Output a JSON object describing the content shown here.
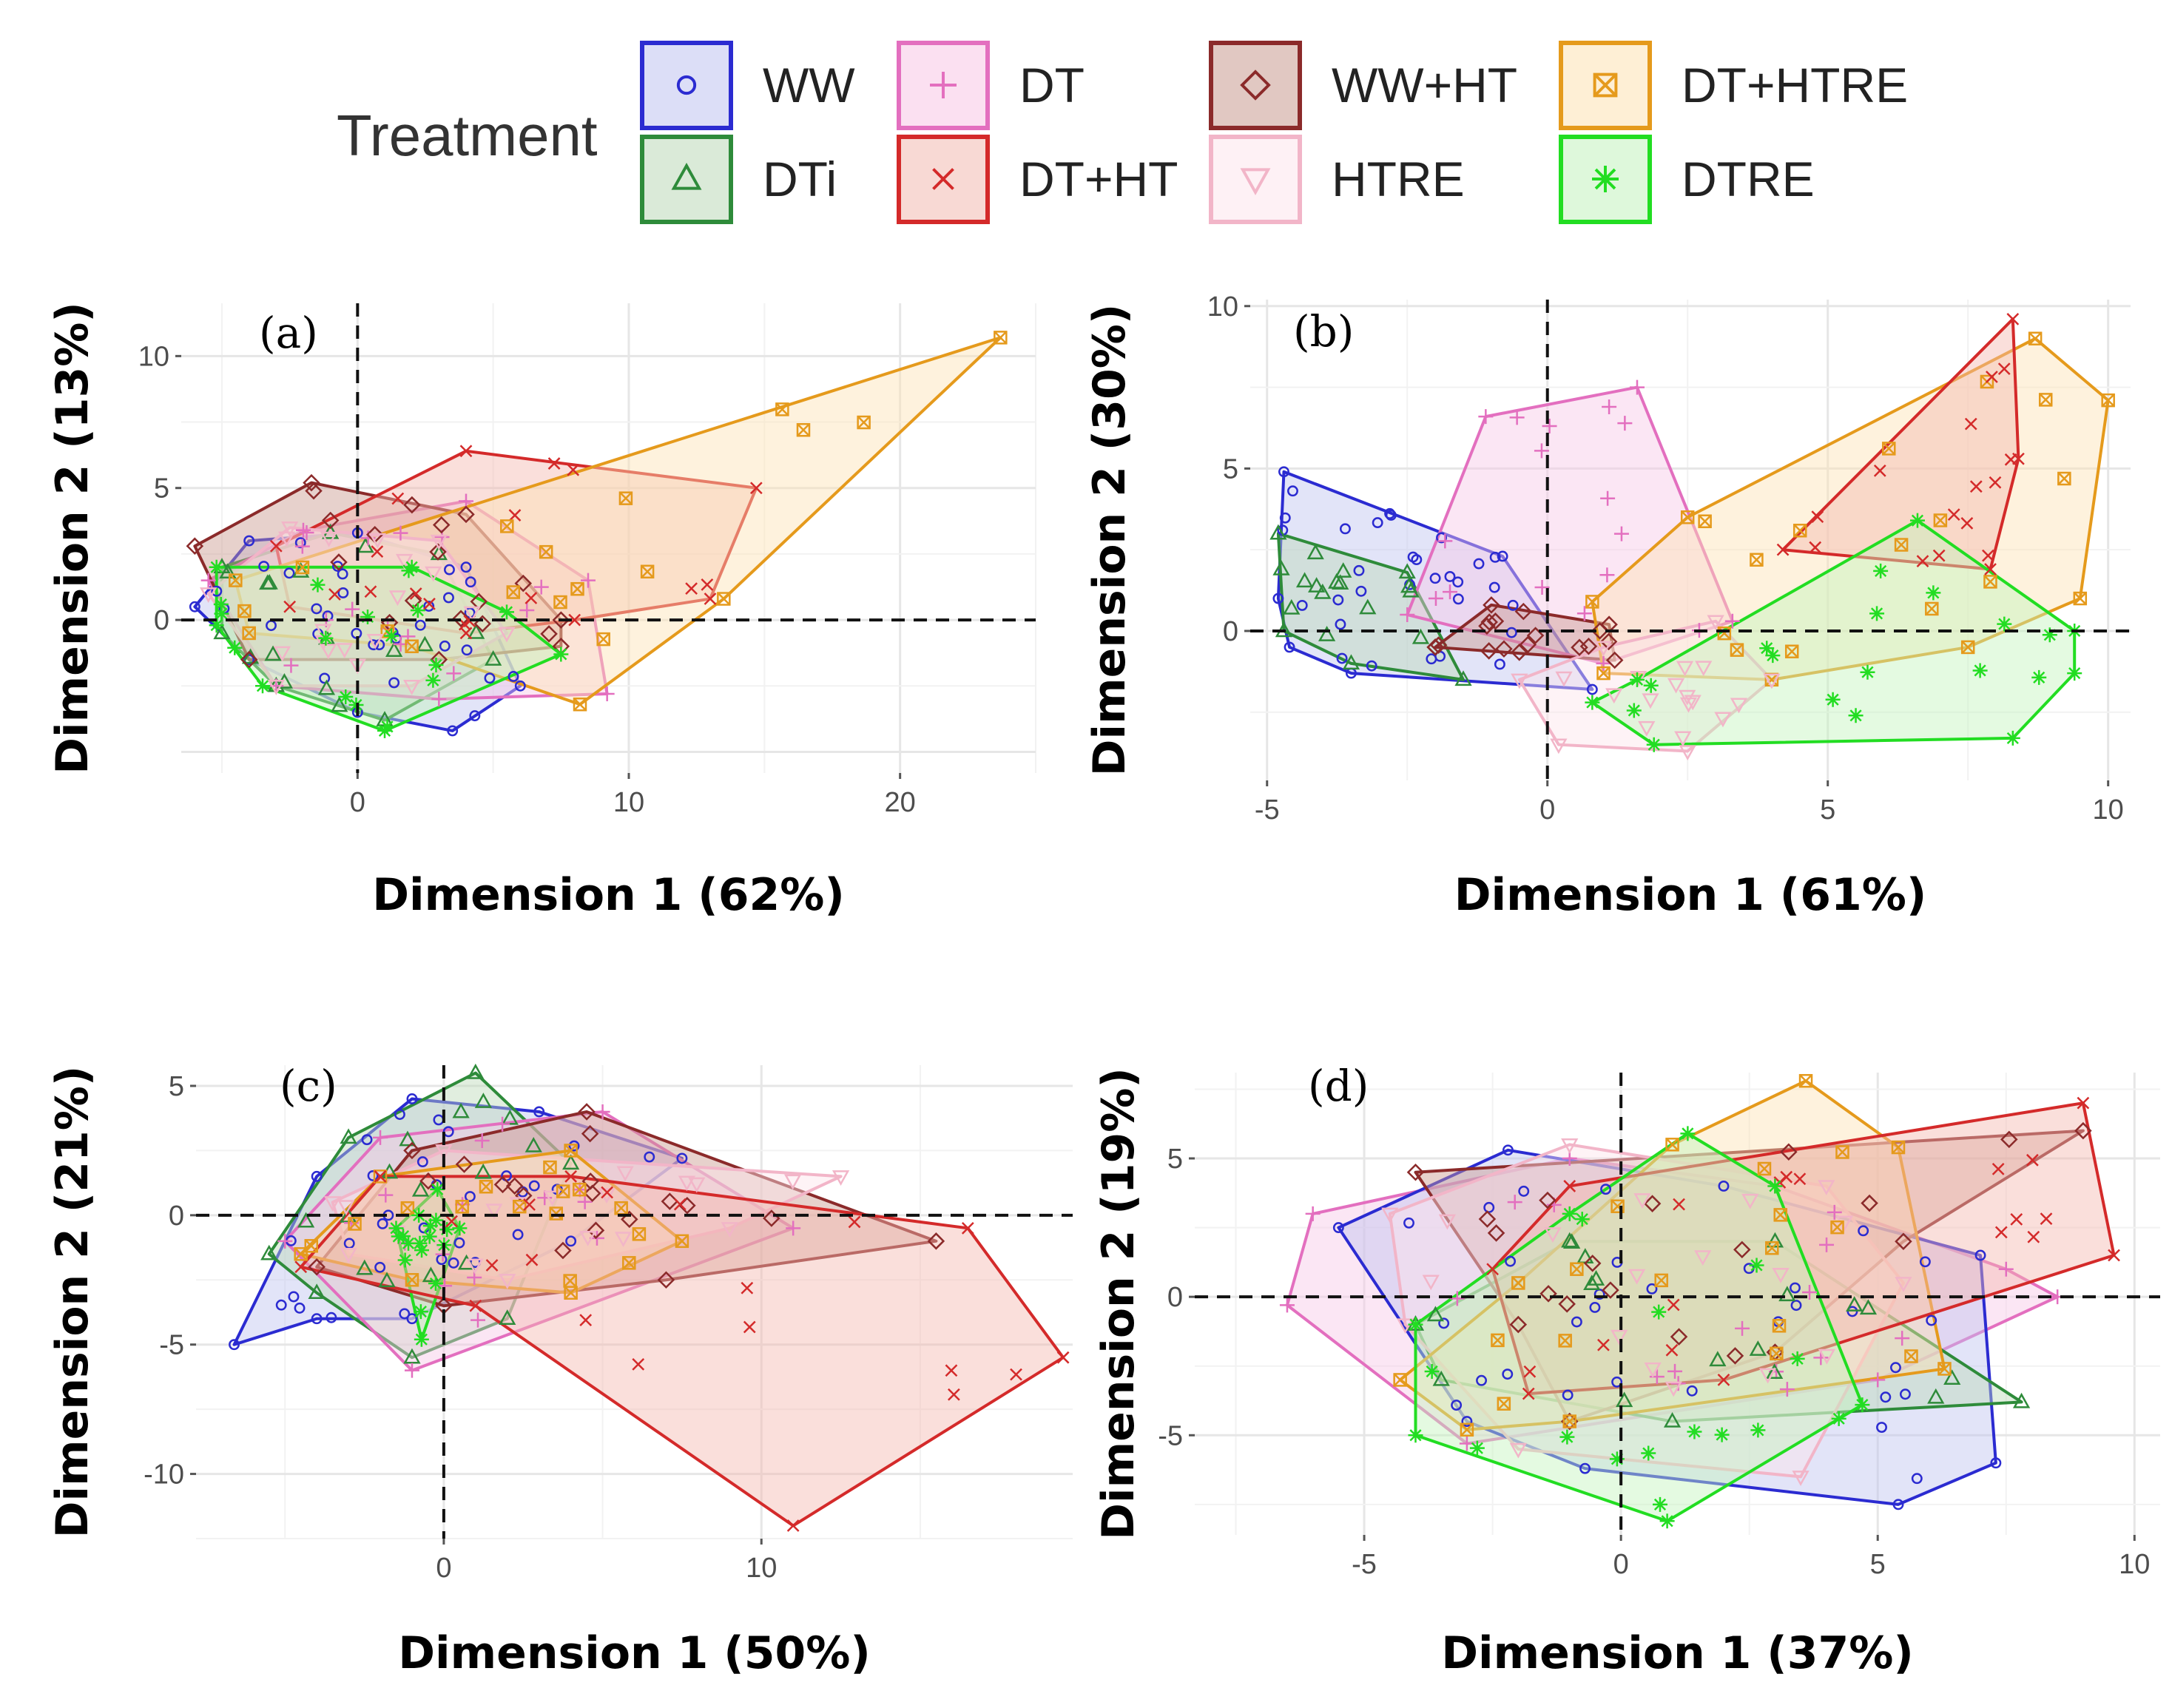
{
  "legend": {
    "title": "Treatment",
    "items": [
      {
        "key": "WW",
        "label": "WW",
        "color": "#2b2bd1",
        "fill": "#bfc3f0",
        "marker": "circle"
      },
      {
        "key": "DT",
        "label": "DT",
        "color": "#e36fbf",
        "fill": "#f7c7e6",
        "marker": "plus"
      },
      {
        "key": "WWHT",
        "label": "WW+HT",
        "color": "#8b2a2a",
        "fill": "#c99a8f",
        "marker": "diamond"
      },
      {
        "key": "DTHTRE",
        "label": "DT+HTRE",
        "color": "#e59a1c",
        "fill": "#fde2b3",
        "marker": "boxed-x"
      },
      {
        "key": "DTi",
        "label": "DTi",
        "color": "#2e8b3a",
        "fill": "#bcd9b8",
        "marker": "triangle"
      },
      {
        "key": "DTHT",
        "label": "DT+HT",
        "color": "#d42a2a",
        "fill": "#f3b9b0",
        "marker": "cross"
      },
      {
        "key": "HTRE",
        "label": "HTRE",
        "color": "#f2b5c8",
        "fill": "#fde5ec",
        "marker": "triangle-down"
      },
      {
        "key": "DTRE",
        "label": "DTRE",
        "color": "#22dd22",
        "fill": "#c3f3bd",
        "marker": "asterisk"
      }
    ]
  },
  "chart_data": [
    {
      "type": "scatter",
      "panel_label": "(a)",
      "xlabel": "Dimension 1 (62%)",
      "ylabel": "Dimension 2 (13%)",
      "xlim": [
        -6.5,
        25
      ],
      "ylim": [
        -5.8,
        12
      ],
      "x_ticks": [
        0,
        10,
        20
      ],
      "x_tick_labels": [
        "0",
        "10",
        "20"
      ],
      "y_ticks": [
        0,
        5,
        10
      ],
      "y_tick_labels": [
        "0",
        "5",
        "10"
      ],
      "hulls": [
        {
          "key": "WW",
          "points": [
            [
              -6,
              0.5
            ],
            [
              -4,
              3
            ],
            [
              0,
              3.3
            ],
            [
              4,
              2
            ],
            [
              6,
              -2.5
            ],
            [
              3.5,
              -4.2
            ],
            [
              0,
              -3.5
            ],
            [
              -4,
              -1.5
            ]
          ]
        },
        {
          "key": "DTi",
          "points": [
            [
              -5,
              2
            ],
            [
              -1,
              3.3
            ],
            [
              3,
              2.5
            ],
            [
              5,
              -1.5
            ],
            [
              1,
              -3.8
            ],
            [
              -3,
              -2.5
            ],
            [
              -5,
              -0.5
            ]
          ]
        },
        {
          "key": "DT",
          "points": [
            [
              -5.5,
              1.5
            ],
            [
              -2,
              3.4
            ],
            [
              4,
              4.5
            ],
            [
              8.5,
              1.5
            ],
            [
              9.2,
              -2.8
            ],
            [
              3,
              -3
            ],
            [
              -3,
              -2.5
            ]
          ]
        },
        {
          "key": "WWHT",
          "points": [
            [
              -6,
              2.8
            ],
            [
              -1.7,
              5.2
            ],
            [
              4,
              4
            ],
            [
              7.5,
              0
            ],
            [
              7.5,
              -1
            ],
            [
              3,
              -1.5
            ],
            [
              -4,
              -1.5
            ]
          ]
        },
        {
          "key": "DTHT",
          "points": [
            [
              -3,
              2.8
            ],
            [
              4,
              6.4
            ],
            [
              14.7,
              5
            ],
            [
              13,
              0.8
            ],
            [
              8,
              0
            ],
            [
              4,
              -0.5
            ],
            [
              -2.5,
              0.5
            ]
          ]
        },
        {
          "key": "DTHTRE",
          "points": [
            [
              -4.5,
              1.5
            ],
            [
              23.7,
              10.7
            ],
            [
              13.5,
              0.8
            ],
            [
              8.2,
              -3.2
            ],
            [
              2,
              -1
            ],
            [
              -4,
              -0.5
            ]
          ]
        },
        {
          "key": "HTRE",
          "points": [
            [
              -5.5,
              1
            ],
            [
              -2.5,
              3.5
            ],
            [
              3,
              3
            ],
            [
              5.5,
              -0.5
            ],
            [
              2,
              -2.5
            ],
            [
              -3,
              -2.5
            ]
          ]
        },
        {
          "key": "DTRE",
          "points": [
            [
              -5.2,
              2
            ],
            [
              2,
              2
            ],
            [
              5.5,
              0.3
            ],
            [
              7.5,
              -1.3
            ],
            [
              1,
              -4.2
            ],
            [
              -3.5,
              -2.5
            ],
            [
              -5.2,
              -0.2
            ]
          ]
        }
      ]
    },
    {
      "type": "scatter",
      "panel_label": "(b)",
      "xlabel": "Dimension 1 (61%)",
      "ylabel": "Dimension 2 (30%)",
      "xlim": [
        -5.3,
        10.4
      ],
      "ylim": [
        -4.6,
        10.2
      ],
      "x_ticks": [
        -5,
        0,
        5,
        10
      ],
      "x_tick_labels": [
        "-5",
        "0",
        "5",
        "10"
      ],
      "y_ticks": [
        0,
        5,
        10
      ],
      "y_tick_labels": [
        "0",
        "5",
        "10"
      ],
      "hulls": [
        {
          "key": "WW",
          "points": [
            [
              -4.7,
              4.9
            ],
            [
              -0.8,
              2.3
            ],
            [
              0.8,
              -1.8
            ],
            [
              -3.5,
              -1.3
            ],
            [
              -4.6,
              -0.5
            ],
            [
              -4.8,
              1
            ]
          ]
        },
        {
          "key": "DTi",
          "points": [
            [
              -4.8,
              3
            ],
            [
              -2.5,
              1.8
            ],
            [
              -1.5,
              -1.5
            ],
            [
              -3.5,
              -1
            ],
            [
              -4.7,
              0
            ]
          ]
        },
        {
          "key": "DT",
          "points": [
            [
              -1.1,
              6.6
            ],
            [
              1.6,
              7.5
            ],
            [
              3.3,
              0.3
            ],
            [
              1,
              -1
            ],
            [
              -2.5,
              0.5
            ]
          ]
        },
        {
          "key": "WWHT",
          "points": [
            [
              -2,
              -0.5
            ],
            [
              -1,
              0.8
            ],
            [
              1.1,
              0.2
            ],
            [
              1.2,
              -0.9
            ],
            [
              -2,
              -0.5
            ]
          ]
        },
        {
          "key": "DTHTRE",
          "points": [
            [
              0.8,
              0.9
            ],
            [
              2.5,
              3.5
            ],
            [
              8.7,
              9
            ],
            [
              10,
              7.1
            ],
            [
              9.5,
              1
            ],
            [
              7.5,
              -0.5
            ],
            [
              4,
              -1.5
            ],
            [
              1,
              -1.3
            ]
          ]
        },
        {
          "key": "HTRE",
          "points": [
            [
              -0.5,
              -1.5
            ],
            [
              0.2,
              -3.5
            ],
            [
              2.5,
              -3.7
            ],
            [
              4,
              -1.5
            ],
            [
              3,
              0.3
            ],
            [
              1,
              -0.5
            ]
          ]
        },
        {
          "key": "DTHT",
          "points": [
            [
              4.2,
              2.5
            ],
            [
              8.3,
              9.6
            ],
            [
              8.4,
              5.3
            ],
            [
              7.9,
              1.9
            ]
          ]
        },
        {
          "key": "DTRE",
          "points": [
            [
              1.6,
              -1.5
            ],
            [
              6.6,
              3.4
            ],
            [
              9.4,
              0
            ],
            [
              9.4,
              -1.3
            ],
            [
              8.3,
              -3.3
            ],
            [
              1.9,
              -3.5
            ],
            [
              0.8,
              -2.2
            ]
          ]
        }
      ]
    },
    {
      "type": "scatter",
      "panel_label": "(c)",
      "xlabel": "Dimension 1 (50%)",
      "ylabel": "Dimension 2 (21%)",
      "xlim": [
        -7.8,
        19.8
      ],
      "ylim": [
        -12.5,
        5.8
      ],
      "x_ticks": [
        0,
        10
      ],
      "x_tick_labels": [
        "0",
        "10"
      ],
      "y_ticks": [
        -10,
        -5,
        0,
        5
      ],
      "y_tick_labels": [
        "-10",
        "-5",
        "0",
        "5"
      ],
      "hulls": [
        {
          "key": "WW",
          "points": [
            [
              -6.6,
              -5
            ],
            [
              -4,
              1.5
            ],
            [
              -1,
              4.5
            ],
            [
              3,
              4
            ],
            [
              7.5,
              2.2
            ],
            [
              4,
              -1
            ],
            [
              -1,
              -4
            ],
            [
              -4,
              -4
            ]
          ]
        },
        {
          "key": "DTi",
          "points": [
            [
              -5.5,
              -1.5
            ],
            [
              -3,
              3
            ],
            [
              1,
              5.5
            ],
            [
              4,
              2
            ],
            [
              2,
              -4
            ],
            [
              -1,
              -5.5
            ],
            [
              -4,
              -3
            ]
          ]
        },
        {
          "key": "DT",
          "points": [
            [
              -5,
              -1
            ],
            [
              -2,
              3
            ],
            [
              5,
              4
            ],
            [
              11,
              -0.5
            ],
            [
              -1,
              -6
            ]
          ]
        },
        {
          "key": "WWHT",
          "points": [
            [
              -4,
              -2
            ],
            [
              -1,
              2.5
            ],
            [
              4.5,
              4
            ],
            [
              15.5,
              -1
            ],
            [
              7,
              -2.5
            ],
            [
              0,
              -3.5
            ]
          ]
        },
        {
          "key": "HTRE",
          "points": [
            [
              -3.5,
              0.5
            ],
            [
              0,
              2.5
            ],
            [
              12.5,
              1.5
            ],
            [
              9,
              -0.5
            ],
            [
              2,
              -2.5
            ],
            [
              -3,
              -1.5
            ]
          ]
        },
        {
          "key": "DTHTRE",
          "points": [
            [
              -4.5,
              -1.5
            ],
            [
              -2,
              1.5
            ],
            [
              4,
              2.5
            ],
            [
              7.5,
              -1
            ],
            [
              4,
              -3
            ],
            [
              -1,
              -2.5
            ]
          ]
        },
        {
          "key": "DTRE",
          "points": [
            [
              -1.5,
              -0.5
            ],
            [
              -0.2,
              1
            ],
            [
              0.5,
              -0.5
            ],
            [
              -0.7,
              -4.8
            ]
          ]
        },
        {
          "key": "DTHT",
          "points": [
            [
              -4.5,
              -2
            ],
            [
              -2,
              1.5
            ],
            [
              4,
              1.5
            ],
            [
              16.5,
              -0.5
            ],
            [
              19.5,
              -5.5
            ],
            [
              11,
              -12
            ],
            [
              1,
              -3.5
            ]
          ]
        }
      ]
    },
    {
      "type": "scatter",
      "panel_label": "(d)",
      "xlabel": "Dimension 1 (37%)",
      "ylabel": "Dimension 2 (19%)",
      "xlim": [
        -8.3,
        10.5
      ],
      "ylim": [
        -8.6,
        8.1
      ],
      "x_ticks": [
        -5,
        0,
        5,
        10
      ],
      "x_tick_labels": [
        "-5",
        "0",
        "5",
        "10"
      ],
      "y_ticks": [
        -5,
        0,
        5
      ],
      "y_tick_labels": [
        "-5",
        "0",
        "5"
      ],
      "hulls": [
        {
          "key": "DT",
          "points": [
            [
              -6.5,
              -0.3
            ],
            [
              -6,
              3
            ],
            [
              -1,
              5
            ],
            [
              3,
              4
            ],
            [
              7.5,
              1
            ],
            [
              8.5,
              0
            ],
            [
              5,
              -3
            ],
            [
              -3,
              -5.3
            ]
          ]
        },
        {
          "key": "WW",
          "points": [
            [
              -5.5,
              2.5
            ],
            [
              -2.2,
              5.3
            ],
            [
              2,
              4
            ],
            [
              7,
              1.5
            ],
            [
              7.3,
              -6
            ],
            [
              5.4,
              -7.5
            ],
            [
              -0.7,
              -6.2
            ],
            [
              -3,
              -4.5
            ]
          ]
        },
        {
          "key": "DTi",
          "points": [
            [
              -4,
              -1
            ],
            [
              -1,
              2
            ],
            [
              3,
              2
            ],
            [
              7.8,
              -3.8
            ],
            [
              1,
              -4.5
            ],
            [
              -3.5,
              -3
            ]
          ]
        },
        {
          "key": "WWHT",
          "points": [
            [
              -4,
              4.5
            ],
            [
              9,
              6
            ],
            [
              5.5,
              2
            ],
            [
              3,
              -2
            ],
            [
              -1,
              -4.5
            ],
            [
              -2,
              -1
            ]
          ]
        },
        {
          "key": "HTRE",
          "points": [
            [
              -4.5,
              3
            ],
            [
              -1,
              5.5
            ],
            [
              4,
              4
            ],
            [
              5.5,
              0.5
            ],
            [
              3.5,
              -6.5
            ],
            [
              -2,
              -5.5
            ],
            [
              -4.2,
              -1
            ]
          ]
        },
        {
          "key": "DTHTRE",
          "points": [
            [
              -4.3,
              -3
            ],
            [
              -2,
              0.5
            ],
            [
              1,
              5.5
            ],
            [
              3.6,
              7.8
            ],
            [
              5.4,
              5.4
            ],
            [
              6.3,
              -2.6
            ],
            [
              -1,
              -4.5
            ],
            [
              -3,
              -4.8
            ]
          ]
        },
        {
          "key": "DTHT",
          "points": [
            [
              -2.5,
              1
            ],
            [
              -1,
              4
            ],
            [
              9,
              7
            ],
            [
              9.6,
              1.5
            ],
            [
              2,
              -3
            ],
            [
              -1.8,
              -3.5
            ]
          ]
        },
        {
          "key": "DTRE",
          "points": [
            [
              -4,
              -5
            ],
            [
              -4,
              -1
            ],
            [
              -1,
              3
            ],
            [
              1.3,
              5.9
            ],
            [
              3,
              4
            ],
            [
              4.7,
              -3.9
            ],
            [
              0.9,
              -8.1
            ]
          ]
        }
      ]
    }
  ]
}
